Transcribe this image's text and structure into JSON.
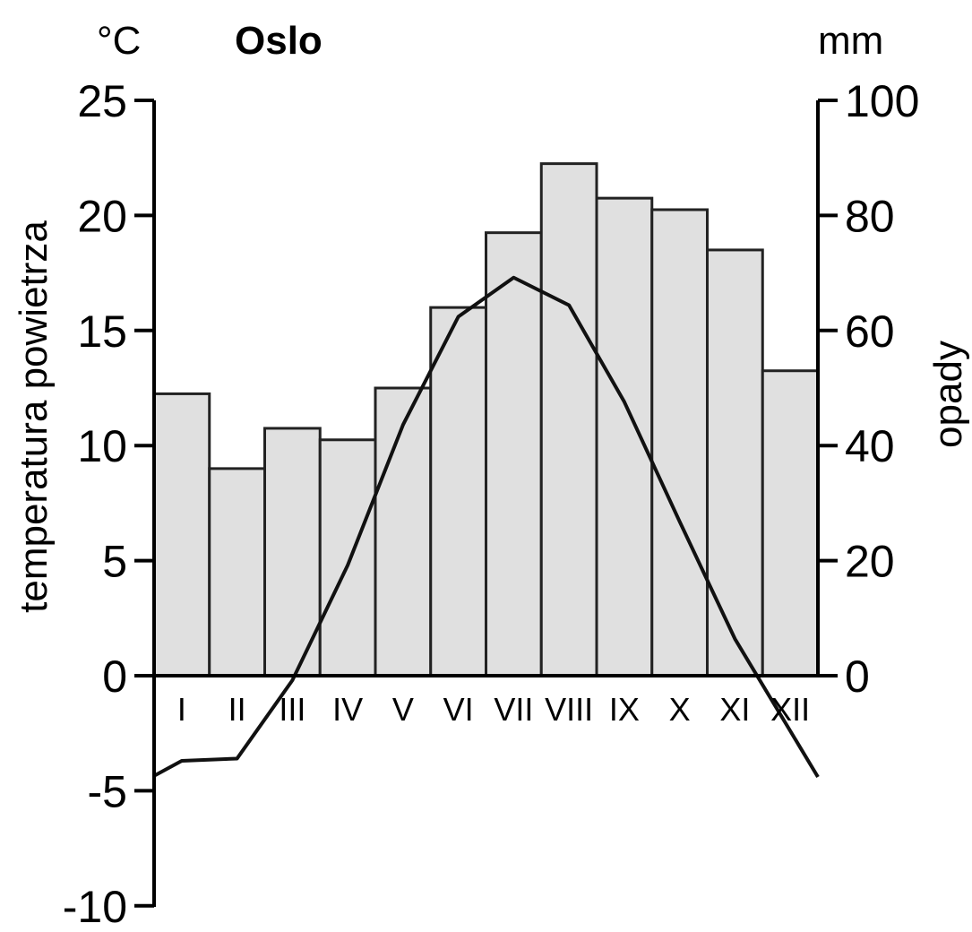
{
  "chart_data": {
    "type": "bar+line",
    "title": "Oslo",
    "categories": [
      "I",
      "II",
      "III",
      "IV",
      "V",
      "VI",
      "VII",
      "VIII",
      "IX",
      "X",
      "XI",
      "XII"
    ],
    "series": [
      {
        "name": "opady",
        "type": "bar",
        "axis": "right",
        "values": [
          49,
          36,
          43,
          41,
          50,
          64,
          77,
          89,
          83,
          81,
          74,
          53
        ]
      },
      {
        "name": "temperatura powietrza",
        "type": "line",
        "axis": "left",
        "values": [
          -3.7,
          -3.6,
          -0.2,
          4.8,
          10.9,
          15.6,
          17.3,
          16.1,
          11.9,
          6.7,
          1.6,
          -2.4
        ]
      }
    ],
    "left_axis": {
      "label": "temperatura powietrza",
      "unit": "°C",
      "range": [
        -10,
        25
      ],
      "ticks": [
        "25",
        "20",
        "15",
        "10",
        "5",
        "0",
        "-5",
        "-10"
      ]
    },
    "right_axis": {
      "label": "opady",
      "unit": "mm",
      "range": [
        0,
        100
      ],
      "ticks": [
        "100",
        "80",
        "60",
        "40",
        "20",
        "0"
      ]
    }
  }
}
